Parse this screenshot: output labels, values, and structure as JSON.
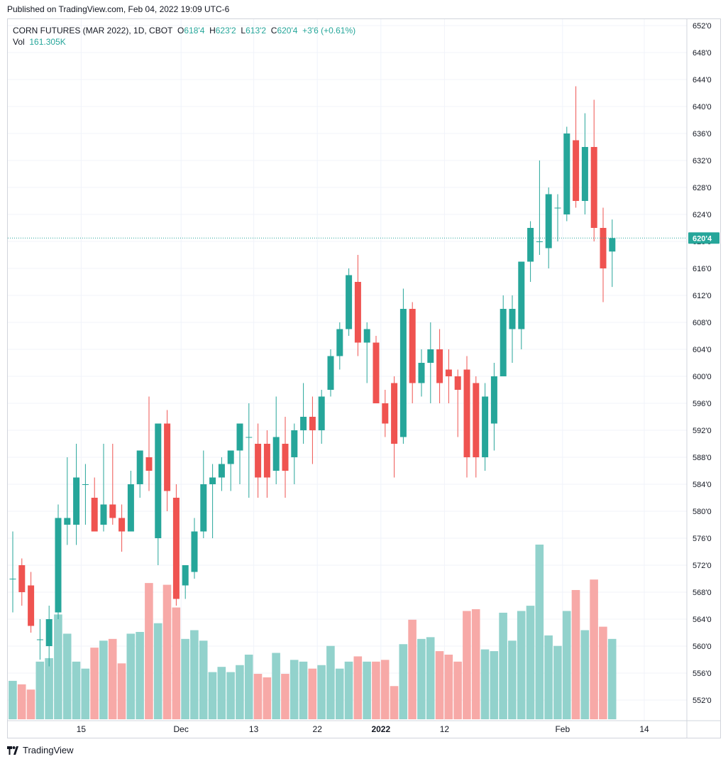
{
  "header": {
    "published": "Published on TradingView.com, Feb 04, 2022 19:09 UTC-6"
  },
  "legend": {
    "symbol": "CORN FUTURES (MAR 2022), 1D, CBOT",
    "o_label": "O",
    "o_value": "618'4",
    "h_label": "H",
    "h_value": "623'2",
    "l_label": "L",
    "l_value": "613'2",
    "c_label": "C",
    "c_value": "620'4",
    "change": "+3'6 (+0.61%)",
    "vol_label": "Vol",
    "vol_value": "161.305K"
  },
  "footer": {
    "brand": "TradingView",
    "logo_icon": "tradingview-logo-icon"
  },
  "colors": {
    "up": "#26a69a",
    "down": "#ef5350",
    "up_vol": "#92d2cc",
    "down_vol": "#f7a9a7",
    "grid": "#f0f3fa",
    "last_line": "#26a69a"
  },
  "chart_data": {
    "type": "candlestick",
    "title": "CORN FUTURES (MAR 2022), 1D, CBOT",
    "ylim": [
      549,
      653
    ],
    "y_ticks": [
      652,
      648,
      644,
      640,
      636,
      632,
      628,
      624,
      620,
      616,
      612,
      608,
      604,
      600,
      596,
      592,
      588,
      584,
      580,
      576,
      572,
      568,
      564,
      560,
      556,
      552
    ],
    "y_tick_labels": [
      "652'0",
      "648'0",
      "644'0",
      "640'0",
      "636'0",
      "632'0",
      "628'0",
      "624'0",
      "620'0",
      "616'0",
      "612'0",
      "608'0",
      "604'0",
      "600'0",
      "596'0",
      "592'0",
      "588'0",
      "584'0",
      "580'0",
      "576'0",
      "572'0",
      "568'0",
      "564'0",
      "560'0",
      "556'0",
      "552'0"
    ],
    "x_ticks": [
      {
        "label": "15",
        "index": 7.5
      },
      {
        "label": "Dec",
        "index": 18.5
      },
      {
        "label": "13",
        "index": 26.5
      },
      {
        "label": "22",
        "index": 33.5
      },
      {
        "label": "2022",
        "index": 40.5
      },
      {
        "label": "12",
        "index": 47.5
      },
      {
        "label": "Feb",
        "index": 60.5
      },
      {
        "label": "14",
        "index": 69.5
      }
    ],
    "total_slots": 74,
    "last_price": 620.5,
    "last_price_label": "620'4",
    "candles": [
      {
        "o": 570,
        "h": 577,
        "l": 565,
        "c": 570,
        "v": 0.22
      },
      {
        "o": 572,
        "h": 573,
        "l": 566,
        "c": 568,
        "v": 0.2
      },
      {
        "o": 569,
        "h": 571,
        "l": 562,
        "c": 563,
        "v": 0.17
      },
      {
        "o": 561,
        "h": 564,
        "l": 558,
        "c": 561,
        "v": 0.33
      },
      {
        "o": 560,
        "h": 566,
        "l": 557,
        "c": 564,
        "v": 0.35
      },
      {
        "o": 565,
        "h": 581,
        "l": 564,
        "c": 579,
        "v": 0.6
      },
      {
        "o": 578,
        "h": 588,
        "l": 575,
        "c": 579,
        "v": 0.49
      },
      {
        "o": 578,
        "h": 590,
        "l": 575,
        "c": 585,
        "v": 0.33
      },
      {
        "o": 584,
        "h": 587,
        "l": 578,
        "c": 584,
        "v": 0.29
      },
      {
        "o": 582,
        "h": 585,
        "l": 577,
        "c": 577,
        "v": 0.41
      },
      {
        "o": 578,
        "h": 590,
        "l": 577,
        "c": 581,
        "v": 0.45
      },
      {
        "o": 581,
        "h": 590,
        "l": 578,
        "c": 579,
        "v": 0.46
      },
      {
        "o": 579,
        "h": 581,
        "l": 574,
        "c": 577,
        "v": 0.32
      },
      {
        "o": 577,
        "h": 586,
        "l": 577,
        "c": 584,
        "v": 0.49
      },
      {
        "o": 584,
        "h": 589,
        "l": 582,
        "c": 589,
        "v": 0.5
      },
      {
        "o": 588,
        "h": 597,
        "l": 583,
        "c": 586,
        "v": 0.78
      },
      {
        "o": 576,
        "h": 593,
        "l": 572,
        "c": 593,
        "v": 0.55
      },
      {
        "o": 593,
        "h": 595,
        "l": 580,
        "c": 583,
        "v": 0.77
      },
      {
        "o": 582,
        "h": 584,
        "l": 566,
        "c": 567,
        "v": 0.64
      },
      {
        "o": 569,
        "h": 571,
        "l": 567,
        "c": 572,
        "v": 0.46
      },
      {
        "o": 571,
        "h": 579,
        "l": 570,
        "c": 577,
        "v": 0.51
      },
      {
        "o": 577,
        "h": 589,
        "l": 576,
        "c": 584,
        "v": 0.45
      },
      {
        "o": 584,
        "h": 587,
        "l": 576,
        "c": 585,
        "v": 0.27
      },
      {
        "o": 585,
        "h": 588,
        "l": 583,
        "c": 587,
        "v": 0.3
      },
      {
        "o": 587,
        "h": 589,
        "l": 583,
        "c": 589,
        "v": 0.27
      },
      {
        "o": 589,
        "h": 593,
        "l": 584,
        "c": 593,
        "v": 0.31
      },
      {
        "o": 591,
        "h": 596,
        "l": 582,
        "c": 591,
        "v": 0.37
      },
      {
        "o": 590,
        "h": 593,
        "l": 582,
        "c": 585,
        "v": 0.26
      },
      {
        "o": 590,
        "h": 592,
        "l": 582,
        "c": 585,
        "v": 0.24
      },
      {
        "o": 586,
        "h": 597,
        "l": 584,
        "c": 591,
        "v": 0.38
      },
      {
        "o": 590,
        "h": 594,
        "l": 582,
        "c": 586,
        "v": 0.26
      },
      {
        "o": 588,
        "h": 593,
        "l": 584,
        "c": 592,
        "v": 0.34
      },
      {
        "o": 592,
        "h": 599,
        "l": 590,
        "c": 594,
        "v": 0.33
      },
      {
        "o": 594,
        "h": 597,
        "l": 587,
        "c": 592,
        "v": 0.29
      },
      {
        "o": 592,
        "h": 598,
        "l": 590,
        "c": 597,
        "v": 0.31
      },
      {
        "o": 598,
        "h": 604,
        "l": 597,
        "c": 603,
        "v": 0.42
      },
      {
        "o": 603,
        "h": 608,
        "l": 601,
        "c": 607,
        "v": 0.29
      },
      {
        "o": 607,
        "h": 616,
        "l": 606,
        "c": 615,
        "v": 0.33
      },
      {
        "o": 614,
        "h": 618,
        "l": 603,
        "c": 605,
        "v": 0.36
      },
      {
        "o": 605,
        "h": 608,
        "l": 599,
        "c": 607,
        "v": 0.33
      },
      {
        "o": 605,
        "h": 606,
        "l": 596,
        "c": 596,
        "v": 0.33
      },
      {
        "o": 596,
        "h": 598,
        "l": 591,
        "c": 593,
        "v": 0.34
      },
      {
        "o": 599,
        "h": 600,
        "l": 585,
        "c": 590,
        "v": 0.19
      },
      {
        "o": 591,
        "h": 613,
        "l": 590,
        "c": 610,
        "v": 0.43
      },
      {
        "o": 610,
        "h": 611,
        "l": 596,
        "c": 599,
        "v": 0.57
      },
      {
        "o": 599,
        "h": 604,
        "l": 597,
        "c": 602,
        "v": 0.46
      },
      {
        "o": 602,
        "h": 608,
        "l": 596,
        "c": 604,
        "v": 0.47
      },
      {
        "o": 604,
        "h": 607,
        "l": 596,
        "c": 599,
        "v": 0.39
      },
      {
        "o": 601,
        "h": 604,
        "l": 596,
        "c": 600,
        "v": 0.37
      },
      {
        "o": 600,
        "h": 601,
        "l": 591,
        "c": 598,
        "v": 0.33
      },
      {
        "o": 601,
        "h": 603,
        "l": 585,
        "c": 588,
        "v": 0.62
      },
      {
        "o": 599,
        "h": 600,
        "l": 585,
        "c": 588,
        "v": 0.63
      },
      {
        "o": 588,
        "h": 599,
        "l": 586,
        "c": 597,
        "v": 0.4
      },
      {
        "o": 593,
        "h": 602,
        "l": 589,
        "c": 600,
        "v": 0.39
      },
      {
        "o": 600,
        "h": 612,
        "l": 600,
        "c": 610,
        "v": 0.61
      },
      {
        "o": 607,
        "h": 612,
        "l": 602,
        "c": 610,
        "v": 0.45
      },
      {
        "o": 607,
        "h": 617,
        "l": 604,
        "c": 617,
        "v": 0.62
      },
      {
        "o": 617,
        "h": 623,
        "l": 614,
        "c": 622,
        "v": 0.65
      },
      {
        "o": 620,
        "h": 632,
        "l": 618,
        "c": 620,
        "v": 1.0
      },
      {
        "o": 619,
        "h": 628,
        "l": 616,
        "c": 627,
        "v": 0.48
      },
      {
        "o": 625,
        "h": 627,
        "l": 620,
        "c": 625,
        "v": 0.42
      },
      {
        "o": 624,
        "h": 637,
        "l": 623,
        "c": 636,
        "v": 0.62
      },
      {
        "o": 635,
        "h": 643,
        "l": 625,
        "c": 626,
        "v": 0.74
      },
      {
        "o": 626,
        "h": 639,
        "l": 624,
        "c": 634,
        "v": 0.51
      },
      {
        "o": 634,
        "h": 641,
        "l": 620,
        "c": 622,
        "v": 0.8
      },
      {
        "o": 622,
        "h": 625,
        "l": 611,
        "c": 616,
        "v": 0.53
      },
      {
        "o": 618.5,
        "h": 623.25,
        "l": 613.25,
        "c": 620.5,
        "v": 0.46
      }
    ]
  }
}
